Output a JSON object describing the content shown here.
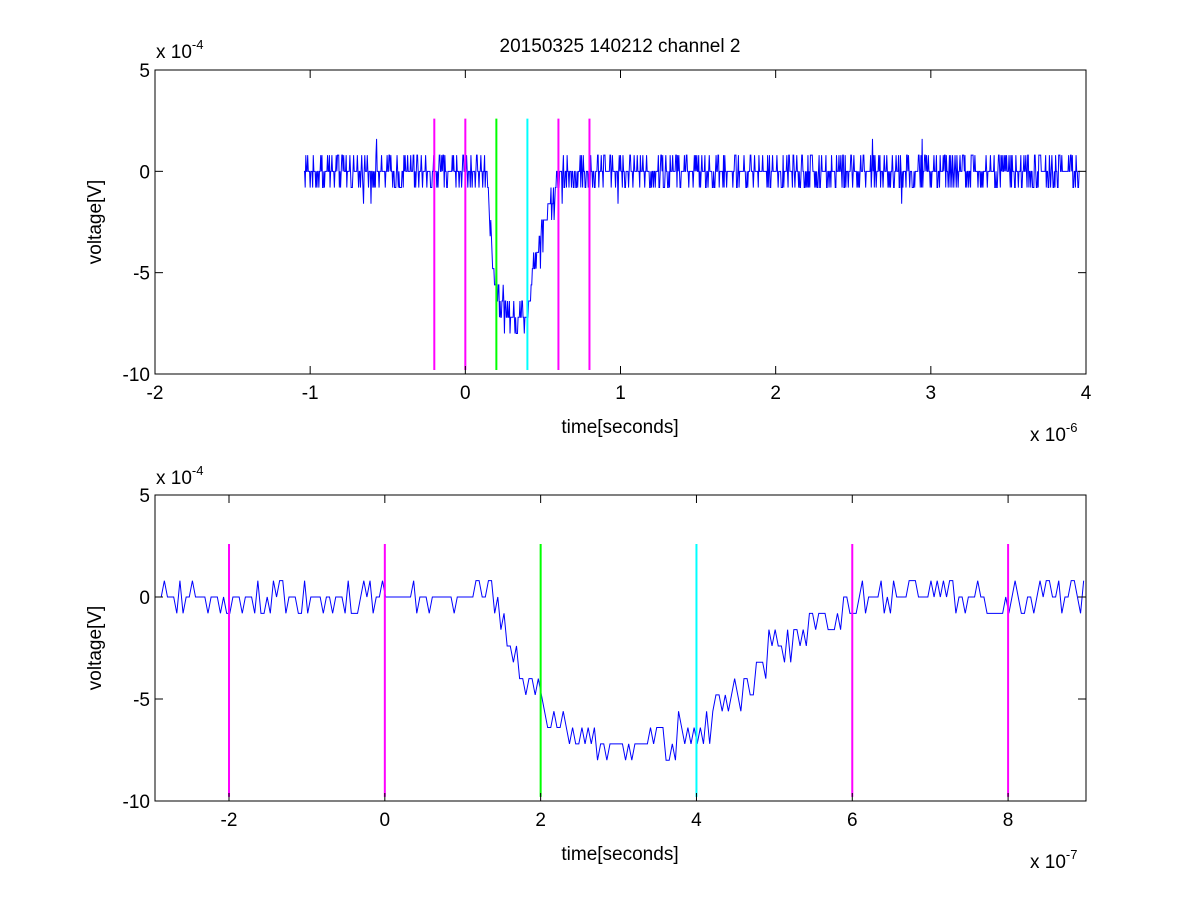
{
  "chart_data": [
    {
      "type": "line",
      "title": "20150325 140212 channel 2",
      "xlabel": "time[seconds]",
      "ylabel": "voltage[V]",
      "x_exponent_label": "x 10",
      "x_exponent_power": "-6",
      "y_exponent_label": "x 10",
      "y_exponent_power": "-4",
      "xlim": [
        -2e-06,
        4e-06
      ],
      "ylim": [
        -0.001,
        0.0005
      ],
      "x_ticks": [
        -2e-06,
        -1e-06,
        0,
        1e-06,
        2e-06,
        3e-06,
        4e-06
      ],
      "x_tick_labels": [
        "-2",
        "-1",
        "0",
        "1",
        "2",
        "3",
        "4"
      ],
      "y_ticks": [
        -0.001,
        -0.0005,
        0,
        0.0005
      ],
      "y_tick_labels": [
        "-10",
        "-5",
        "0",
        "5"
      ],
      "grid": false,
      "signal": {
        "color": "#0000ff",
        "sample_step": 4e-09,
        "x_start": -1.04e-06,
        "x_end": 3.96e-06,
        "baseline": -5e-05,
        "noise_amplitude": 0.0001,
        "quantization": 8e-05,
        "dip": [
          {
            "x": -1.04e-06,
            "y": 0
          },
          {
            "x": 1.4e-07,
            "y": 0
          },
          {
            "x": 1.8e-07,
            "y": -0.00045
          },
          {
            "x": 2.2e-07,
            "y": -0.00063
          },
          {
            "x": 3e-07,
            "y": -0.00073
          },
          {
            "x": 4e-07,
            "y": -0.00068
          },
          {
            "x": 4.4e-07,
            "y": -0.00048
          },
          {
            "x": 5e-07,
            "y": -0.00025
          },
          {
            "x": 5.8e-07,
            "y": -9e-05
          },
          {
            "x": 6.4e-07,
            "y": 0
          },
          {
            "x": 3.96e-06,
            "y": 0
          }
        ]
      },
      "markers": [
        {
          "x": -2e-07,
          "color": "#ff00ff"
        },
        {
          "x": 0,
          "color": "#ff00ff"
        },
        {
          "x": 2e-07,
          "color": "#00ff00"
        },
        {
          "x": 4e-07,
          "color": "#00ffff"
        },
        {
          "x": 6e-07,
          "color": "#ff00ff"
        },
        {
          "x": 8e-07,
          "color": "#ff00ff"
        }
      ],
      "marker_y_range": [
        -0.00098,
        0.00026
      ]
    },
    {
      "type": "line",
      "xlabel": "time[seconds]",
      "ylabel": "voltage[V]",
      "x_exponent_label": "x 10",
      "x_exponent_power": "-7",
      "y_exponent_label": "x 10",
      "y_exponent_power": "-4",
      "xlim": [
        -2.95e-07,
        9e-07
      ],
      "ylim": [
        -0.001,
        0.0005
      ],
      "x_ticks": [
        -2e-07,
        0,
        2e-07,
        4e-07,
        6e-07,
        8e-07
      ],
      "x_tick_labels": [
        "-2",
        "0",
        "2",
        "4",
        "6",
        "8"
      ],
      "y_ticks": [
        -0.001,
        -0.0005,
        0,
        0.0005
      ],
      "y_tick_labels": [
        "-10",
        "-5",
        "0",
        "5"
      ],
      "grid": false,
      "signal": {
        "color": "#0000ff",
        "sample_step": 4e-09,
        "x_start": -2.95e-07,
        "x_end": 9e-07,
        "baseline": -5e-05,
        "noise_amplitude": 0.0001,
        "quantization": 8e-05,
        "dip": [
          {
            "x": -2.95e-07,
            "y": 0
          },
          {
            "x": 1.4e-07,
            "y": 0
          },
          {
            "x": 1.8e-07,
            "y": -0.00045
          },
          {
            "x": 2.2e-07,
            "y": -0.00063
          },
          {
            "x": 3e-07,
            "y": -0.00073
          },
          {
            "x": 4e-07,
            "y": -0.00068
          },
          {
            "x": 4.4e-07,
            "y": -0.00048
          },
          {
            "x": 5e-07,
            "y": -0.00025
          },
          {
            "x": 5.8e-07,
            "y": -9e-05
          },
          {
            "x": 6.4e-07,
            "y": 0
          },
          {
            "x": 9e-07,
            "y": 0
          }
        ]
      },
      "markers": [
        {
          "x": -2e-07,
          "color": "#ff00ff"
        },
        {
          "x": 0,
          "color": "#ff00ff"
        },
        {
          "x": 2e-07,
          "color": "#00ff00"
        },
        {
          "x": 4e-07,
          "color": "#00ffff"
        },
        {
          "x": 6e-07,
          "color": "#ff00ff"
        },
        {
          "x": 8e-07,
          "color": "#ff00ff"
        }
      ],
      "marker_y_range": [
        -0.00098,
        0.00026
      ]
    }
  ]
}
